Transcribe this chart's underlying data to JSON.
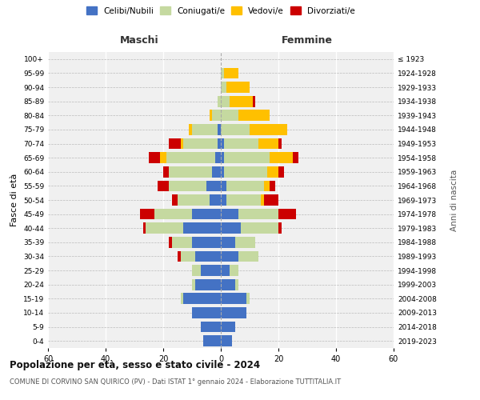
{
  "age_groups_bottom_to_top": [
    "0-4",
    "5-9",
    "10-14",
    "15-19",
    "20-24",
    "25-29",
    "30-34",
    "35-39",
    "40-44",
    "45-49",
    "50-54",
    "55-59",
    "60-64",
    "65-69",
    "70-74",
    "75-79",
    "80-84",
    "85-89",
    "90-94",
    "95-99",
    "100+"
  ],
  "birth_years_bottom_to_top": [
    "2019-2023",
    "2014-2018",
    "2009-2013",
    "2004-2008",
    "1999-2003",
    "1994-1998",
    "1989-1993",
    "1984-1988",
    "1979-1983",
    "1974-1978",
    "1969-1973",
    "1964-1968",
    "1959-1963",
    "1954-1958",
    "1949-1953",
    "1944-1948",
    "1939-1943",
    "1934-1938",
    "1929-1933",
    "1924-1928",
    "≤ 1923"
  ],
  "maschi": {
    "celibi": [
      6,
      7,
      10,
      13,
      9,
      7,
      9,
      10,
      13,
      10,
      4,
      5,
      3,
      2,
      1,
      1,
      0,
      0,
      0,
      0,
      0
    ],
    "coniugati": [
      0,
      0,
      0,
      1,
      1,
      3,
      5,
      7,
      13,
      13,
      11,
      13,
      15,
      17,
      12,
      9,
      3,
      1,
      0,
      0,
      0
    ],
    "vedovi": [
      0,
      0,
      0,
      0,
      0,
      0,
      0,
      0,
      0,
      0,
      0,
      0,
      0,
      2,
      1,
      1,
      1,
      0,
      0,
      0,
      0
    ],
    "divorziati": [
      0,
      0,
      0,
      0,
      0,
      0,
      1,
      1,
      1,
      5,
      2,
      4,
      2,
      4,
      4,
      0,
      0,
      0,
      0,
      0,
      0
    ]
  },
  "femmine": {
    "nubili": [
      4,
      5,
      9,
      9,
      5,
      3,
      6,
      5,
      7,
      6,
      2,
      2,
      1,
      1,
      1,
      0,
      0,
      0,
      0,
      0,
      0
    ],
    "coniugate": [
      0,
      0,
      0,
      1,
      1,
      3,
      7,
      7,
      13,
      14,
      12,
      13,
      15,
      16,
      12,
      10,
      6,
      3,
      2,
      1,
      0
    ],
    "vedove": [
      0,
      0,
      0,
      0,
      0,
      0,
      0,
      0,
      0,
      0,
      1,
      2,
      4,
      8,
      7,
      13,
      11,
      8,
      8,
      5,
      0
    ],
    "divorziate": [
      0,
      0,
      0,
      0,
      0,
      0,
      0,
      0,
      1,
      6,
      5,
      2,
      2,
      2,
      1,
      0,
      0,
      1,
      0,
      0,
      0
    ]
  },
  "colors": {
    "celibi": "#4472c4",
    "coniugati": "#c5d9a0",
    "vedovi": "#ffc000",
    "divorziati": "#cc0000"
  },
  "title": "Popolazione per età, sesso e stato civile - 2024",
  "subtitle": "COMUNE DI CORVINO SAN QUIRICO (PV) - Dati ISTAT 1° gennaio 2024 - Elaborazione TUTTITALIA.IT",
  "xlabel_left": "Maschi",
  "xlabel_right": "Femmine",
  "ylabel_left": "Fasce di età",
  "ylabel_right": "Anni di nascita",
  "xlim": 60,
  "legend_labels": [
    "Celibi/Nubili",
    "Coniugati/e",
    "Vedovi/e",
    "Divorziati/e"
  ]
}
